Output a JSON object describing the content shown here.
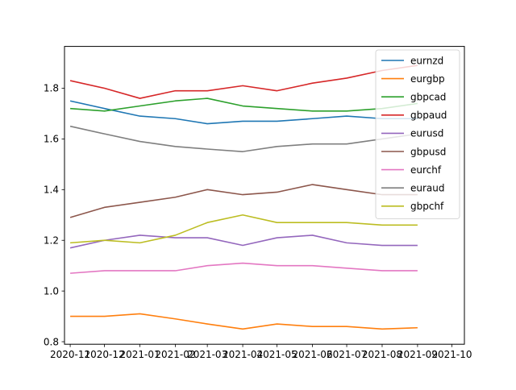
{
  "chart_data": {
    "type": "line",
    "title": "",
    "xlabel": "",
    "ylabel": "",
    "x_range": [
      "2020-10-27",
      "2021-10-12"
    ],
    "x_ticks": [
      "2020-11",
      "2020-12",
      "2021-01",
      "2021-02",
      "2021-03",
      "2021-04",
      "2021-05",
      "2021-06",
      "2021-07",
      "2021-08",
      "2021-09",
      "2021-10"
    ],
    "x_tick_labels": [
      "2020-11",
      "2020-12",
      "2021-01",
      "2021-02",
      "2021-03",
      "2021-04",
      "2021-05",
      "2021-06",
      "2021-07",
      "2021-08",
      "2021-09",
      "2021-10"
    ],
    "ylim": [
      0.79,
      1.965
    ],
    "y_ticks": [
      0.8,
      1.0,
      1.2,
      1.4,
      1.6,
      1.8
    ],
    "y_tick_labels": [
      "0.8",
      "1.0",
      "1.2",
      "1.4",
      "1.6",
      "1.8"
    ],
    "grid": false,
    "legend_position": "top-right",
    "x": [
      "2020-11-01",
      "2020-12-01",
      "2021-01-01",
      "2021-02-01",
      "2021-03-01",
      "2021-04-01",
      "2021-05-01",
      "2021-06-01",
      "2021-07-01",
      "2021-08-01",
      "2021-09-01"
    ],
    "series": [
      {
        "name": "eurnzd",
        "color": "#1f77b4",
        "values": [
          1.75,
          1.72,
          1.69,
          1.68,
          1.66,
          1.67,
          1.67,
          1.68,
          1.69,
          1.68,
          1.68
        ]
      },
      {
        "name": "eurgbp",
        "color": "#ff7f0e",
        "values": [
          0.9,
          0.9,
          0.91,
          0.89,
          0.87,
          0.85,
          0.87,
          0.86,
          0.86,
          0.85,
          0.855
        ]
      },
      {
        "name": "gbpcad",
        "color": "#2ca02c",
        "values": [
          1.72,
          1.71,
          1.73,
          1.75,
          1.76,
          1.73,
          1.72,
          1.71,
          1.71,
          1.72,
          1.74
        ]
      },
      {
        "name": "gbpaud",
        "color": "#d62728",
        "values": [
          1.83,
          1.8,
          1.76,
          1.79,
          1.79,
          1.81,
          1.79,
          1.82,
          1.84,
          1.87,
          1.89
        ]
      },
      {
        "name": "eurusd",
        "color": "#9467bd",
        "values": [
          1.17,
          1.2,
          1.22,
          1.21,
          1.21,
          1.18,
          1.21,
          1.22,
          1.19,
          1.18,
          1.18
        ]
      },
      {
        "name": "gbpusd",
        "color": "#8c564b",
        "values": [
          1.29,
          1.33,
          1.35,
          1.37,
          1.4,
          1.38,
          1.39,
          1.42,
          1.4,
          1.38,
          1.38
        ]
      },
      {
        "name": "eurchf",
        "color": "#e377c2",
        "values": [
          1.07,
          1.08,
          1.08,
          1.08,
          1.1,
          1.11,
          1.1,
          1.1,
          1.09,
          1.08,
          1.08
        ]
      },
      {
        "name": "euraud",
        "color": "#7f7f7f",
        "values": [
          1.65,
          1.62,
          1.59,
          1.57,
          1.56,
          1.55,
          1.57,
          1.58,
          1.58,
          1.6,
          1.62
        ]
      },
      {
        "name": "gbpchf",
        "color": "#bcbd22",
        "values": [
          1.19,
          1.2,
          1.19,
          1.22,
          1.27,
          1.3,
          1.27,
          1.27,
          1.27,
          1.26,
          1.26
        ]
      }
    ]
  }
}
